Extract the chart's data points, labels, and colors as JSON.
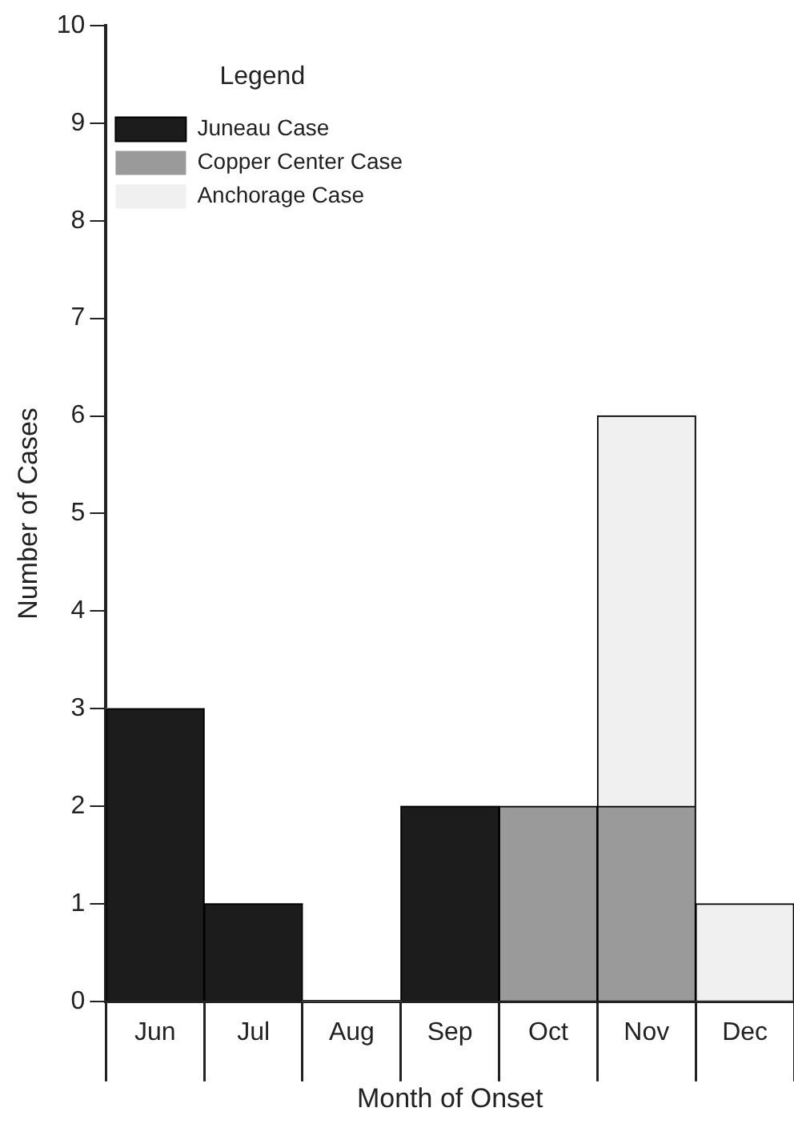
{
  "chart_data": {
    "type": "bar",
    "stacked": true,
    "xlabel": "Month of Onset",
    "ylabel": "Number of Cases",
    "legend_title": "Legend",
    "legend": "top left",
    "grid": false,
    "categories": [
      "Jun",
      "Jul",
      "Aug",
      "Sep",
      "Oct",
      "Nov",
      "Dec"
    ],
    "series": [
      {
        "name": "Juneau Case",
        "color": "#1c1c1c",
        "values": [
          3,
          1,
          0,
          2,
          0,
          0,
          0
        ]
      },
      {
        "name": "Copper Center Case",
        "color": "#9a9a9a",
        "values": [
          0,
          0,
          0,
          0,
          2,
          2,
          0
        ]
      },
      {
        "name": "Anchorage Case",
        "color": "#f0f0f0",
        "values": [
          0,
          0,
          0,
          0,
          0,
          4,
          1
        ]
      }
    ],
    "ylim": [
      0,
      10
    ],
    "yticks": [
      0,
      1,
      2,
      3,
      4,
      5,
      6,
      7,
      8,
      9,
      10
    ]
  }
}
